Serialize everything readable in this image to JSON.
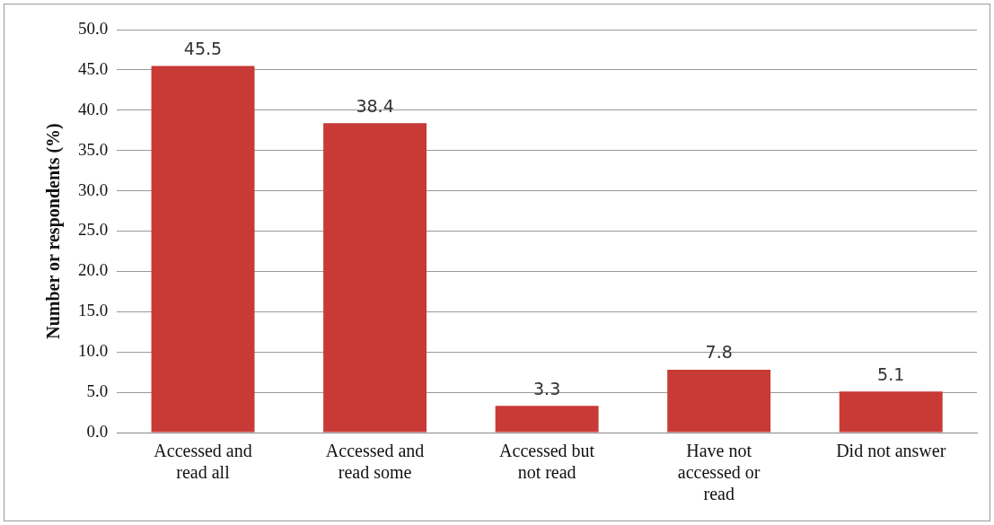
{
  "chart_data": {
    "type": "bar",
    "ylabel": "Number or respondents (%)",
    "categories": [
      "Accessed and read all",
      "Accessed and read some",
      "Accessed but not read",
      "Have not accessed or read",
      "Did not answer"
    ],
    "values": [
      45.5,
      38.4,
      3.3,
      7.8,
      5.1
    ],
    "color": "#c83a36",
    "ylim": [
      0,
      50
    ],
    "yticks": [
      {
        "value": 0,
        "label": "0.0"
      },
      {
        "value": 5,
        "label": "5.0"
      },
      {
        "value": 10,
        "label": "10.0"
      },
      {
        "value": 15,
        "label": "15.0"
      },
      {
        "value": 20,
        "label": "20.0"
      },
      {
        "value": 25,
        "label": "25.0"
      },
      {
        "value": 30,
        "label": "30.0"
      },
      {
        "value": 35,
        "label": "35.0"
      },
      {
        "value": 40,
        "label": "40.0"
      },
      {
        "value": 45,
        "label": "45.0"
      },
      {
        "value": 50,
        "label": "50.0"
      }
    ],
    "grid": "y",
    "data_labels": true,
    "legend": false
  }
}
